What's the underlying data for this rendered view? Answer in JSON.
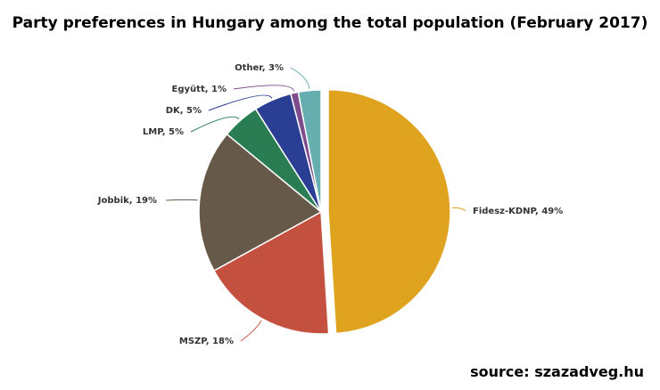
{
  "chart_data": {
    "type": "pie",
    "title": "Party preferences in Hungary among the total population (February 2017)",
    "slices": [
      {
        "label": "Fidesz-KDNP, 49%",
        "value": 49,
        "color": "#e0a31f",
        "exploded": true
      },
      {
        "label": "MSZP, 18%",
        "value": 18,
        "color": "#c45040"
      },
      {
        "label": "Jobbik, 19%",
        "value": 19,
        "color": "#66594a"
      },
      {
        "label": "LMP, 5%",
        "value": 5,
        "color": "#2a7d52"
      },
      {
        "label": "DK, 5%",
        "value": 5,
        "color": "#2a3f94"
      },
      {
        "label": "Együtt, 1%",
        "value": 1,
        "color": "#7d4c8c"
      },
      {
        "label": "Other, 3%",
        "value": 3,
        "color": "#66aeb0"
      }
    ]
  },
  "source": "source: szazadveg.hu"
}
